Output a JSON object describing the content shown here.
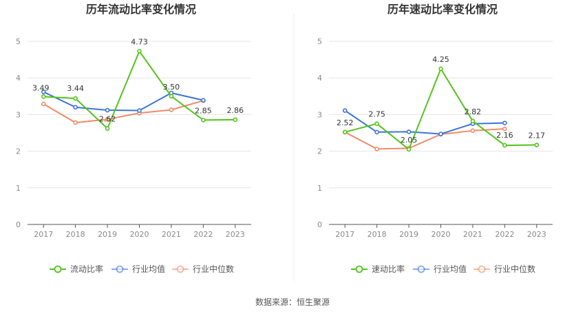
{
  "source_text": "数据来源：恒生聚源",
  "chart_data": [
    {
      "type": "line",
      "title": "历年流动比率变化情况",
      "categories": [
        "2017",
        "2018",
        "2019",
        "2020",
        "2021",
        "2022",
        "2023"
      ],
      "ylim": [
        0,
        5
      ],
      "yticks": [
        0,
        1,
        2,
        3,
        4,
        5
      ],
      "grid": true,
      "legend_position": "bottom",
      "series": [
        {
          "name": "流动比率",
          "color": "#52c41a",
          "values": [
            3.49,
            3.44,
            2.62,
            4.73,
            3.5,
            2.85,
            2.86
          ],
          "labels": [
            "3.49",
            "3.44",
            "2.62",
            "4.73",
            "3.50",
            "2.85",
            "2.86"
          ]
        },
        {
          "name": "行业均值",
          "color": "#3a74d9",
          "values": [
            3.62,
            3.2,
            3.12,
            3.11,
            3.59,
            3.39,
            null
          ]
        },
        {
          "name": "行业中位数",
          "color": "#f08a66",
          "values": [
            3.29,
            2.78,
            2.87,
            3.04,
            3.13,
            3.38,
            null
          ]
        }
      ]
    },
    {
      "type": "line",
      "title": "历年速动比率变化情况",
      "categories": [
        "2017",
        "2018",
        "2019",
        "2020",
        "2021",
        "2022",
        "2023"
      ],
      "ylim": [
        0,
        5
      ],
      "yticks": [
        0,
        1,
        2,
        3,
        4,
        5
      ],
      "grid": true,
      "legend_position": "bottom",
      "series": [
        {
          "name": "速动比率",
          "color": "#52c41a",
          "values": [
            2.52,
            2.75,
            2.05,
            4.25,
            2.82,
            2.16,
            2.17
          ],
          "labels": [
            "2.52",
            "2.75",
            "2.05",
            "4.25",
            "2.82",
            "2.16",
            "2.17"
          ]
        },
        {
          "name": "行业均值",
          "color": "#3a74d9",
          "values": [
            3.11,
            2.52,
            2.53,
            2.47,
            2.75,
            2.77,
            null
          ]
        },
        {
          "name": "行业中位数",
          "color": "#f08a66",
          "values": [
            2.52,
            2.06,
            2.08,
            2.46,
            2.56,
            2.61,
            null
          ]
        }
      ]
    }
  ]
}
